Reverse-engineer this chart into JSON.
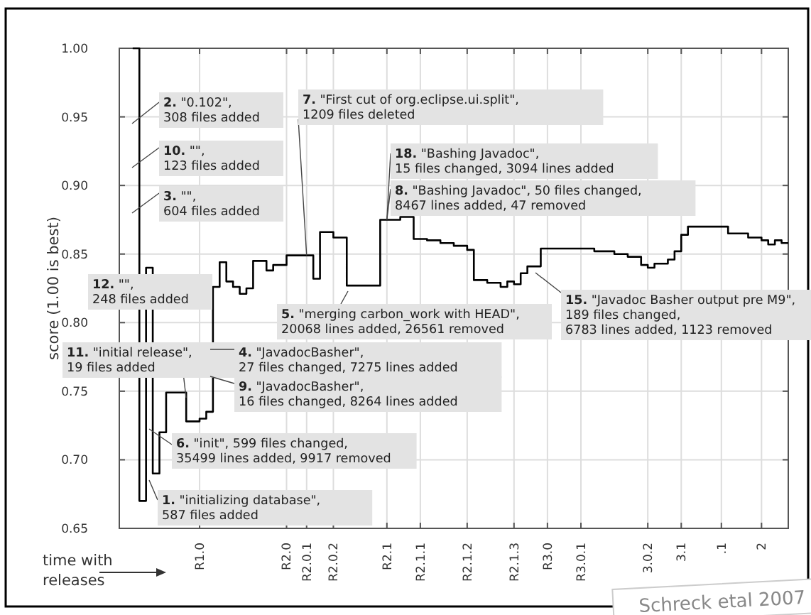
{
  "chart_data": {
    "type": "step",
    "ylabel": "score (1.00 is best)",
    "xlabel": "time with releases",
    "ylim": [
      0.65,
      1.0
    ],
    "yticks": [
      {
        "value": 0.65,
        "label": "0.65"
      },
      {
        "value": 0.7,
        "label": "0.70"
      },
      {
        "value": 0.75,
        "label": "0.75"
      },
      {
        "value": 0.8,
        "label": "0.80"
      },
      {
        "value": 0.85,
        "label": "0.85"
      },
      {
        "value": 0.9,
        "label": "0.90"
      },
      {
        "value": 0.95,
        "label": "0.95"
      },
      {
        "value": 1.0,
        "label": "1.00"
      }
    ],
    "categories": [
      null,
      null,
      null,
      null,
      null,
      null,
      null,
      null,
      null,
      null,
      null,
      null,
      "R1.0",
      null,
      null,
      null,
      null,
      null,
      null,
      null,
      null,
      null,
      null,
      null,
      null,
      "R2.0",
      null,
      null,
      "R2.0.1",
      null,
      null,
      null,
      "R2.0.2",
      null,
      null,
      null,
      null,
      null,
      null,
      null,
      "R2.1",
      null,
      null,
      null,
      null,
      "R2.1.1",
      null,
      null,
      null,
      null,
      null,
      null,
      "R2.1.2",
      null,
      null,
      null,
      null,
      null,
      null,
      "R2.1.3",
      null,
      null,
      null,
      null,
      "R3.0",
      null,
      null,
      null,
      null,
      "R3.0.1",
      null,
      null,
      null,
      null,
      null,
      null,
      null,
      null,
      null,
      "3.0.2",
      null,
      null,
      null,
      null,
      "3.1",
      null,
      null,
      null,
      null,
      null,
      ".1",
      null,
      null,
      null,
      null,
      null,
      "2",
      null,
      null,
      null,
      null
    ],
    "grid": true,
    "series": [
      {
        "color": "#000000",
        "values": [
          null,
          null,
          1.0,
          0.67,
          0.84,
          0.69,
          0.72,
          0.749,
          0.749,
          0.749,
          0.728,
          0.728,
          0.73,
          0.735,
          0.826,
          0.844,
          0.83,
          0.826,
          0.821,
          0.825,
          0.845,
          0.845,
          0.838,
          0.842,
          0.842,
          0.849,
          0.849,
          0.849,
          0.849,
          0.832,
          0.866,
          0.866,
          0.862,
          0.862,
          0.827,
          0.827,
          0.827,
          0.827,
          0.827,
          0.875,
          0.875,
          0.875,
          0.877,
          0.877,
          0.861,
          0.861,
          0.86,
          0.86,
          0.858,
          0.858,
          0.856,
          0.856,
          0.853,
          0.831,
          0.831,
          0.829,
          0.829,
          0.826,
          0.83,
          0.828,
          0.836,
          0.841,
          0.841,
          0.854,
          0.854,
          0.854,
          0.854,
          0.854,
          0.854,
          0.854,
          0.854,
          0.852,
          0.852,
          0.852,
          0.85,
          0.85,
          0.848,
          0.848,
          0.842,
          0.84,
          0.843,
          0.843,
          0.846,
          0.852,
          0.864,
          0.87,
          0.87,
          0.87,
          0.87,
          0.87,
          0.87,
          0.865,
          0.865,
          0.865,
          0.862,
          0.862,
          0.86,
          0.857,
          0.86,
          0.858,
          0.858
        ]
      }
    ],
    "annotations": [
      "2. \"0.102\",\n308 files added",
      "10. \"\",\n123 files added",
      "3. \"\",\n604 files added",
      "12. \"\",\n248 files added",
      "11. \"initial release\",\n19 files added",
      "6. \"init\", 599 files changed,\n35499 lines added, 9917 removed",
      "1. \"initializing database\",\n587 files added",
      "4. \"JavadocBasher\",\n27 files changed, 7275 lines added",
      "9. \"JavadocBasher\",\n16 files changed, 8264 lines added",
      "5. \"merging carbon_work with HEAD\",\n20068 lines added, 26561 removed",
      {
        "text": "7. \"First cut of org.eclipse.ui.split\",\n1209 files deleted",
        "x": "R2.0.1",
        "y": 0.849
      },
      {
        "text": "18. \"Bashing Javadoc\",\n15 files changed, 3094 lines added",
        "x": "R2.1",
        "y": 0.875
      },
      {
        "text": "8. \"Bashing Javadoc\", 50 files changed,\n8467 lines added, 47 removed",
        "x": "R2.1",
        "y": 0.875
      },
      "15. \"Javadoc Basher output pre M9\",\n189 files changed,\n6783 lines added, 1123 removed",
      "Schreck etal 2007"
    ]
  }
}
